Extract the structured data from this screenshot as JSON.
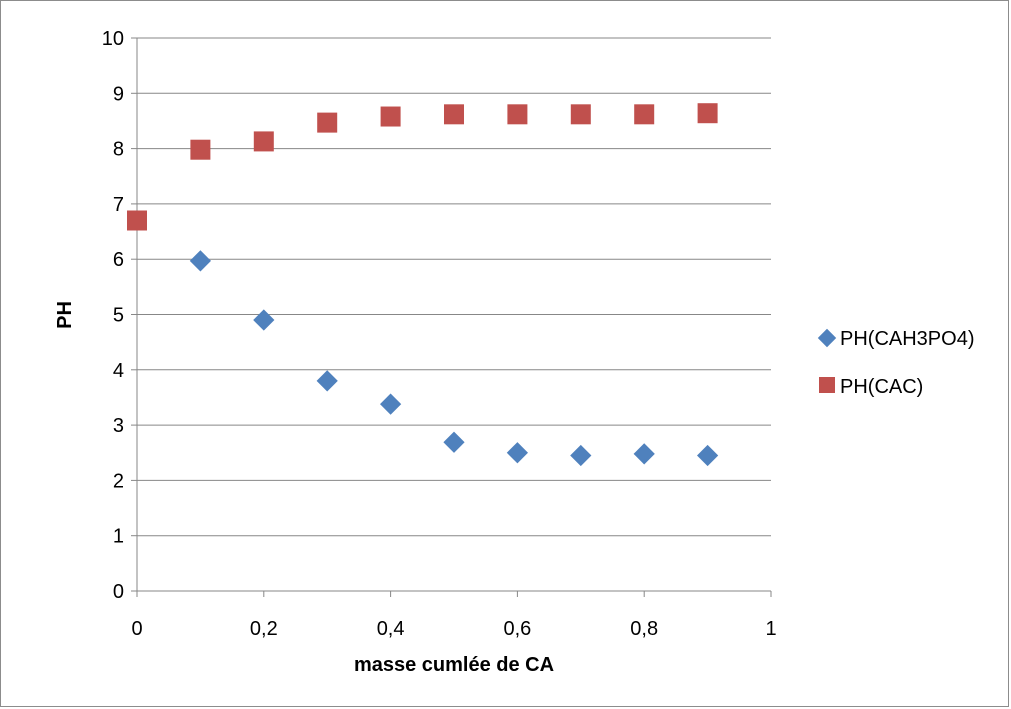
{
  "chart_data": {
    "type": "scatter",
    "title": "",
    "xlabel": "masse cumlée de CA",
    "ylabel": "PH",
    "xlim": [
      0,
      1
    ],
    "ylim": [
      0,
      10
    ],
    "x_ticks": [
      0,
      0.2,
      0.4,
      0.6,
      0.8,
      1
    ],
    "x_tick_labels": [
      "0",
      "0,2",
      "0,4",
      "0,6",
      "0,8",
      "1"
    ],
    "y_ticks": [
      0,
      1,
      2,
      3,
      4,
      5,
      6,
      7,
      8,
      9,
      10
    ],
    "y_tick_labels": [
      "0",
      "1",
      "2",
      "3",
      "4",
      "5",
      "6",
      "7",
      "8",
      "9",
      "10"
    ],
    "grid": "horizontal",
    "legend_position": "right",
    "series": [
      {
        "name": "PH(CAH3PO4)",
        "marker": "diamond",
        "color": "#4f81bd",
        "x": [
          0.1,
          0.2,
          0.3,
          0.4,
          0.5,
          0.6,
          0.7,
          0.8,
          0.9
        ],
        "y": [
          5.97,
          4.9,
          3.8,
          3.38,
          2.69,
          2.5,
          2.45,
          2.48,
          2.45
        ]
      },
      {
        "name": "PH(CAC)",
        "marker": "square",
        "color": "#c0504d",
        "x": [
          0,
          0.1,
          0.2,
          0.3,
          0.4,
          0.5,
          0.6,
          0.7,
          0.8,
          0.9
        ],
        "y": [
          6.7,
          7.98,
          8.13,
          8.47,
          8.58,
          8.62,
          8.62,
          8.62,
          8.62,
          8.64
        ]
      }
    ]
  }
}
